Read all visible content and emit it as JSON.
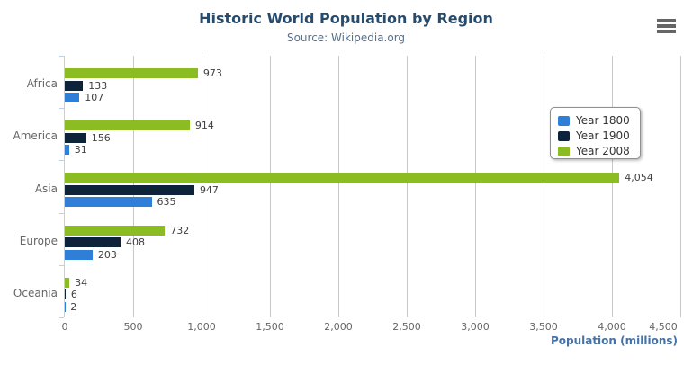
{
  "chart_data": {
    "type": "bar",
    "title": "Historic World Population by Region",
    "subtitle": "Source: Wikipedia.org",
    "categories": [
      "Africa",
      "America",
      "Asia",
      "Europe",
      "Oceania"
    ],
    "series": [
      {
        "name": "Year 1800",
        "color": "#2f7ed8",
        "values": [
          107,
          31,
          635,
          203,
          2
        ]
      },
      {
        "name": "Year 1900",
        "color": "#0d233a",
        "values": [
          133,
          156,
          947,
          408,
          6
        ]
      },
      {
        "name": "Year 2008",
        "color": "#8bbc21",
        "values": [
          973,
          914,
          4054,
          732,
          34
        ]
      }
    ],
    "series_display_order_top_to_bottom": [
      "Year 2008",
      "Year 1900",
      "Year 1800"
    ],
    "data_labels": [
      "107",
      "31",
      "635",
      "203",
      "2",
      "133",
      "156",
      "947",
      "408",
      "6",
      "973",
      "914",
      "4,054",
      "732",
      "34"
    ],
    "xlabel": "Population (millions)",
    "ylabel": "",
    "x_ticks": [
      "0",
      "500",
      "1,000",
      "1,500",
      "2,000",
      "2,500",
      "3,000",
      "3,500",
      "4,000",
      "4,500"
    ],
    "xlim": [
      0,
      4500
    ],
    "tick_interval": 500,
    "grid": true,
    "legend_position": "right",
    "legend_items": [
      "Year 1800",
      "Year 1900",
      "Year 2008"
    ]
  },
  "toolbar": {
    "export_menu_icon": "hamburger-menu-icon"
  },
  "colors": {
    "title": "#274b6d",
    "subtitle": "#55708e",
    "axis_title": "#4572a7",
    "tick_label": "#666666",
    "data_label": "#404040",
    "gridline": "#c9c9c9",
    "axis_line": "#c0d0e0",
    "legend_border": "#909090",
    "legend_text": "#333333",
    "export_icon": "#666666",
    "series_1800": "#2f7ed8",
    "series_1900": "#0d233a",
    "series_2008": "#8bbc21"
  }
}
